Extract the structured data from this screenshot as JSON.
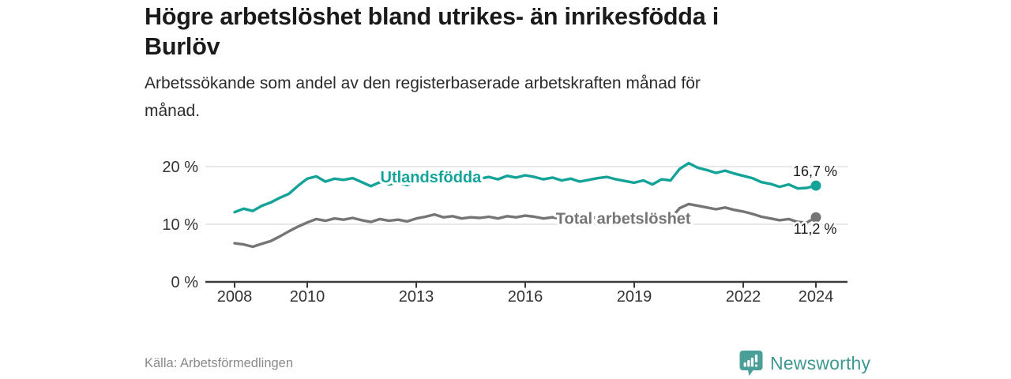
{
  "title": "Högre arbetslöshet bland utrikes- än inrikesfödda i\nBurlöv",
  "subtitle": "Arbetssökande som andel av den registerbaserade arbetskraften månad för\nmånad.",
  "source": "Källa: Arbetsförmedlingen",
  "brand": {
    "name": "Newsworthy",
    "color": "#3E9890",
    "icon_color": "#4AA099",
    "icon": "bar-chart-speech-bubble-icon"
  },
  "colors": {
    "accent_teal": "#14A398",
    "neutral_gray": "#757575",
    "grid": "#DCDCDC",
    "axis": "#3A3A3A",
    "tick_text": "#333333",
    "text_dark": "#1A1A1A",
    "text_muted": "#8A8A8A",
    "background": "#FFFFFF"
  },
  "chart_data": {
    "type": "line",
    "title": "Högre arbetslöshet bland utrikes- än inrikesfödda i Burlöv",
    "subtitle": "Arbetssökande som andel av den registerbaserade arbetskraften månad för månad.",
    "grid": "horizontal",
    "legend": "inline-labels",
    "unit": "%",
    "x_axis": {
      "ticks": [
        2008,
        2010,
        2013,
        2016,
        2019,
        2022,
        2024
      ],
      "range": [
        2007.2,
        2024.9
      ]
    },
    "y_axis": {
      "ticks": [
        0,
        10,
        20
      ],
      "tick_labels": [
        "0 %",
        "10 %",
        "20 %"
      ],
      "gridlines": [
        10,
        20
      ],
      "range": [
        0,
        22
      ]
    },
    "x": [
      2008,
      2008.25,
      2008.5,
      2008.75,
      2009,
      2009.25,
      2009.5,
      2009.75,
      2010,
      2010.25,
      2010.5,
      2010.75,
      2011,
      2011.25,
      2011.5,
      2011.75,
      2012,
      2012.25,
      2012.5,
      2012.75,
      2013,
      2013.25,
      2013.5,
      2013.75,
      2014,
      2014.25,
      2014.5,
      2014.75,
      2015,
      2015.25,
      2015.5,
      2015.75,
      2016,
      2016.25,
      2016.5,
      2016.75,
      2017,
      2017.25,
      2017.5,
      2017.75,
      2018,
      2018.25,
      2018.5,
      2018.75,
      2019,
      2019.25,
      2019.5,
      2019.75,
      2020,
      2020.25,
      2020.5,
      2020.75,
      2021,
      2021.25,
      2021.5,
      2021.75,
      2022,
      2022.25,
      2022.5,
      2022.75,
      2023,
      2023.25,
      2023.5,
      2023.75,
      2024
    ],
    "series": [
      {
        "name": "Utlandsfödda",
        "color": "#14A398",
        "end_value": 16.7,
        "end_label": "16,7 %",
        "end_label_below": false,
        "dash_from_index": null,
        "label_at": {
          "x": 2013.4,
          "y": 18.2
        },
        "values": [
          12.1,
          12.7,
          12.3,
          13.2,
          13.8,
          14.6,
          15.3,
          16.7,
          17.9,
          18.3,
          17.4,
          17.9,
          17.7,
          18.0,
          17.3,
          16.6,
          17.3,
          16.9,
          17.2,
          16.8,
          17.4,
          17.5,
          17.9,
          17.6,
          18.0,
          17.6,
          17.3,
          17.9,
          18.2,
          17.8,
          18.4,
          18.1,
          18.5,
          18.2,
          17.8,
          18.1,
          17.6,
          17.9,
          17.4,
          17.7,
          18.0,
          18.2,
          17.8,
          17.5,
          17.2,
          17.6,
          16.9,
          17.8,
          17.6,
          19.6,
          20.6,
          19.8,
          19.4,
          18.9,
          19.3,
          18.8,
          18.4,
          18.0,
          17.3,
          17.0,
          16.5,
          16.9,
          16.2,
          16.3,
          16.7
        ]
      },
      {
        "name": "Total arbetslöshet",
        "color": "#757575",
        "end_value": 11.2,
        "end_label": "11,2 %",
        "end_label_below": true,
        "dash_from_index": 62,
        "label_at": {
          "x": 2018.7,
          "y": 11.0
        },
        "values": [
          6.7,
          6.5,
          6.1,
          6.6,
          7.1,
          7.9,
          8.8,
          9.6,
          10.3,
          10.9,
          10.6,
          11.0,
          10.8,
          11.1,
          10.7,
          10.4,
          10.9,
          10.6,
          10.8,
          10.5,
          11.0,
          11.3,
          11.7,
          11.2,
          11.4,
          11.0,
          11.2,
          11.1,
          11.3,
          11.0,
          11.4,
          11.2,
          11.5,
          11.3,
          11.0,
          11.2,
          10.9,
          11.1,
          10.8,
          11.0,
          11.2,
          11.4,
          11.1,
          10.8,
          10.6,
          10.9,
          10.4,
          10.9,
          11.0,
          12.8,
          13.5,
          13.2,
          12.9,
          12.6,
          12.9,
          12.5,
          12.2,
          11.8,
          11.3,
          11.0,
          10.7,
          10.9,
          10.4,
          10.3,
          11.2
        ]
      }
    ]
  }
}
